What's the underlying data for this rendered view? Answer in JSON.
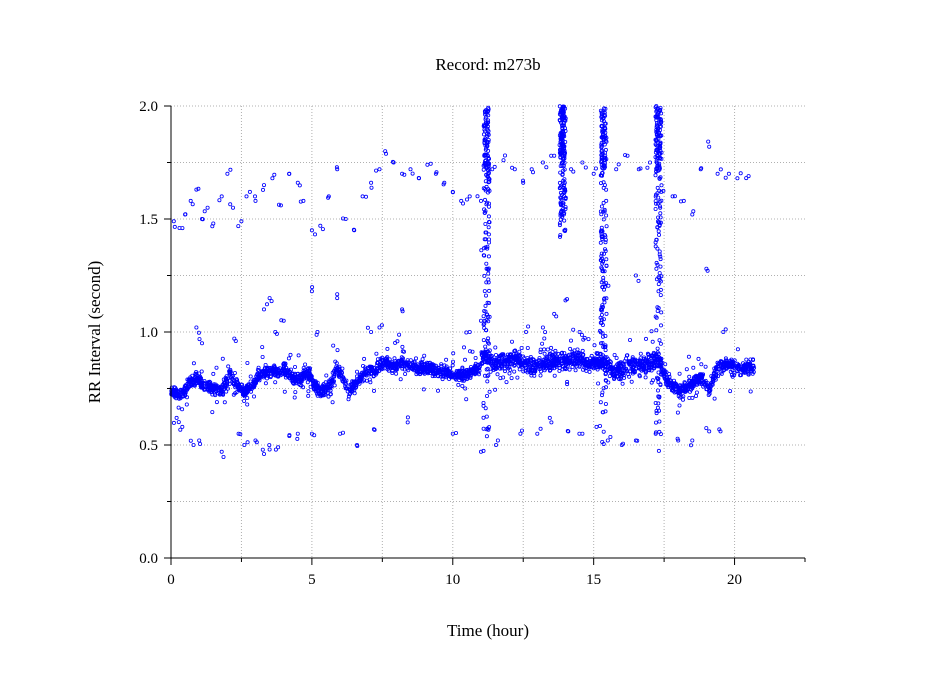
{
  "chart_data": {
    "type": "scatter",
    "title": "Record:  m273b",
    "xlabel": "Time (hour)",
    "ylabel": "RR Interval (second)",
    "xlim": [
      0,
      22.5
    ],
    "ylim": [
      0,
      2.0
    ],
    "x_ticks": [
      0,
      5,
      10,
      15,
      20
    ],
    "x_tick_labels": [
      "0",
      "5",
      "10",
      "15",
      "20"
    ],
    "x_minor_ticks": [
      2.5,
      7.5,
      12.5,
      17.5,
      22.5
    ],
    "y_ticks": [
      0.0,
      0.5,
      1.0,
      1.5,
      2.0
    ],
    "y_tick_labels": [
      "0.0",
      "0.5",
      "1.0",
      "1.5",
      "2.0"
    ],
    "y_minor_ticks": [
      0.25,
      0.75,
      1.25,
      1.75
    ],
    "grid": true,
    "marker_color": "#0000ff",
    "series": [
      {
        "baseline": [
          [
            0.0,
            0.74
          ],
          [
            0.3,
            0.72
          ],
          [
            0.6,
            0.76
          ],
          [
            0.9,
            0.8
          ],
          [
            1.2,
            0.76
          ],
          [
            1.5,
            0.75
          ],
          [
            1.8,
            0.74
          ],
          [
            2.1,
            0.82
          ],
          [
            2.3,
            0.77
          ],
          [
            2.6,
            0.74
          ],
          [
            2.9,
            0.76
          ],
          [
            3.2,
            0.82
          ],
          [
            3.5,
            0.83
          ],
          [
            3.8,
            0.82
          ],
          [
            4.0,
            0.84
          ],
          [
            4.2,
            0.81
          ],
          [
            4.4,
            0.79
          ],
          [
            4.6,
            0.79
          ],
          [
            4.9,
            0.82
          ],
          [
            5.1,
            0.76
          ],
          [
            5.3,
            0.74
          ],
          [
            5.6,
            0.76
          ],
          [
            5.9,
            0.84
          ],
          [
            6.1,
            0.8
          ],
          [
            6.3,
            0.74
          ],
          [
            6.6,
            0.78
          ],
          [
            6.9,
            0.82
          ],
          [
            7.2,
            0.83
          ],
          [
            7.5,
            0.86
          ],
          [
            7.8,
            0.85
          ],
          [
            8.2,
            0.86
          ],
          [
            8.6,
            0.85
          ],
          [
            9.0,
            0.84
          ],
          [
            9.5,
            0.83
          ],
          [
            10.0,
            0.81
          ],
          [
            10.5,
            0.81
          ],
          [
            10.9,
            0.84
          ],
          [
            11.1,
            0.9
          ],
          [
            11.4,
            0.86
          ],
          [
            11.8,
            0.87
          ],
          [
            12.2,
            0.88
          ],
          [
            12.5,
            0.86
          ],
          [
            12.9,
            0.84
          ],
          [
            13.2,
            0.86
          ],
          [
            13.6,
            0.87
          ],
          [
            14.0,
            0.87
          ],
          [
            14.4,
            0.88
          ],
          [
            14.8,
            0.86
          ],
          [
            15.2,
            0.87
          ],
          [
            15.5,
            0.86
          ],
          [
            15.8,
            0.82
          ],
          [
            16.2,
            0.86
          ],
          [
            16.6,
            0.85
          ],
          [
            17.0,
            0.86
          ],
          [
            17.3,
            0.88
          ],
          [
            17.6,
            0.78
          ],
          [
            18.0,
            0.74
          ],
          [
            18.4,
            0.76
          ],
          [
            18.8,
            0.8
          ],
          [
            19.1,
            0.74
          ],
          [
            19.4,
            0.84
          ],
          [
            19.7,
            0.86
          ],
          [
            20.1,
            0.84
          ],
          [
            20.7,
            0.84
          ]
        ],
        "upper_points": [
          [
            0.1,
            1.49
          ],
          [
            0.3,
            1.46
          ],
          [
            0.5,
            1.52
          ],
          [
            0.7,
            1.58
          ],
          [
            0.9,
            1.63
          ],
          [
            1.1,
            1.5
          ],
          [
            1.3,
            1.55
          ],
          [
            1.5,
            1.48
          ],
          [
            1.8,
            1.6
          ],
          [
            2.0,
            1.7
          ],
          [
            2.2,
            1.55
          ],
          [
            2.5,
            1.49
          ],
          [
            2.8,
            1.62
          ],
          [
            3.0,
            1.58
          ],
          [
            3.3,
            1.65
          ],
          [
            3.6,
            1.68
          ],
          [
            3.9,
            1.56
          ],
          [
            4.2,
            1.7
          ],
          [
            4.5,
            1.66
          ],
          [
            4.7,
            1.58
          ],
          [
            5.0,
            1.45
          ],
          [
            5.3,
            1.47
          ],
          [
            5.6,
            1.6
          ],
          [
            5.9,
            1.72
          ],
          [
            6.2,
            1.5
          ],
          [
            6.5,
            1.45
          ],
          [
            6.8,
            1.6
          ],
          [
            7.1,
            1.66
          ],
          [
            7.4,
            1.72
          ],
          [
            7.6,
            1.8
          ],
          [
            7.9,
            1.75
          ],
          [
            8.2,
            1.7
          ],
          [
            8.5,
            1.72
          ],
          [
            8.8,
            1.68
          ],
          [
            9.1,
            1.74
          ],
          [
            9.4,
            1.7
          ],
          [
            9.7,
            1.66
          ],
          [
            10.0,
            1.62
          ],
          [
            10.3,
            1.58
          ],
          [
            10.6,
            1.6
          ],
          [
            11.0,
            1.58
          ],
          [
            11.4,
            1.72
          ],
          [
            11.8,
            1.76
          ],
          [
            12.2,
            1.72
          ],
          [
            12.5,
            1.66
          ],
          [
            12.8,
            1.72
          ],
          [
            13.2,
            1.75
          ],
          [
            13.6,
            1.78
          ],
          [
            13.9,
            1.82
          ],
          [
            14.2,
            1.72
          ],
          [
            14.6,
            1.75
          ],
          [
            15.0,
            1.7
          ],
          [
            15.4,
            1.65
          ],
          [
            15.8,
            1.72
          ],
          [
            16.2,
            1.78
          ],
          [
            16.6,
            1.72
          ],
          [
            17.0,
            1.75
          ],
          [
            17.4,
            1.62
          ],
          [
            17.8,
            1.6
          ],
          [
            18.2,
            1.58
          ],
          [
            18.5,
            1.52
          ],
          [
            18.8,
            1.72
          ],
          [
            19.1,
            1.82
          ],
          [
            19.4,
            1.7
          ],
          [
            19.8,
            1.7
          ],
          [
            20.1,
            1.68
          ],
          [
            20.5,
            1.69
          ]
        ],
        "mid_points": [
          [
            0.9,
            1.02
          ],
          [
            1.1,
            0.95
          ],
          [
            2.3,
            0.96
          ],
          [
            3.3,
            1.1
          ],
          [
            3.5,
            1.15
          ],
          [
            3.7,
            1.0
          ],
          [
            4.0,
            1.05
          ],
          [
            5.0,
            1.18
          ],
          [
            5.2,
            1.0
          ],
          [
            5.9,
            1.15
          ],
          [
            7.1,
            1.0
          ],
          [
            7.4,
            1.02
          ],
          [
            8.2,
            1.1
          ],
          [
            10.6,
            1.0
          ],
          [
            11.0,
            1.05
          ],
          [
            11.1,
            1.34
          ],
          [
            11.2,
            1.28
          ],
          [
            12.6,
            1.0
          ],
          [
            13.2,
            1.02
          ],
          [
            13.6,
            1.08
          ],
          [
            14.0,
            1.14
          ],
          [
            14.5,
            1.0
          ],
          [
            15.3,
            1.28
          ],
          [
            15.4,
            1.2
          ],
          [
            16.5,
            1.25
          ],
          [
            17.3,
            1.18
          ],
          [
            19.0,
            1.28
          ],
          [
            19.6,
            1.0
          ]
        ],
        "lower_points": [
          [
            0.2,
            0.62
          ],
          [
            0.4,
            0.58
          ],
          [
            0.8,
            0.5
          ],
          [
            1.0,
            0.52
          ],
          [
            1.8,
            0.47
          ],
          [
            2.4,
            0.55
          ],
          [
            2.6,
            0.5
          ],
          [
            3.0,
            0.52
          ],
          [
            3.3,
            0.46
          ],
          [
            3.5,
            0.48
          ],
          [
            3.8,
            0.49
          ],
          [
            4.2,
            0.54
          ],
          [
            4.5,
            0.55
          ],
          [
            5.0,
            0.55
          ],
          [
            6.0,
            0.55
          ],
          [
            6.6,
            0.5
          ],
          [
            7.2,
            0.57
          ],
          [
            8.4,
            0.6
          ],
          [
            10.0,
            0.55
          ],
          [
            11.0,
            0.47
          ],
          [
            11.2,
            0.57
          ],
          [
            11.6,
            0.52
          ],
          [
            12.4,
            0.55
          ],
          [
            13.0,
            0.55
          ],
          [
            13.5,
            0.6
          ],
          [
            14.1,
            0.56
          ],
          [
            14.6,
            0.55
          ],
          [
            15.1,
            0.58
          ],
          [
            15.5,
            0.52
          ],
          [
            16.0,
            0.5
          ],
          [
            16.5,
            0.52
          ],
          [
            17.2,
            0.55
          ],
          [
            18.0,
            0.52
          ],
          [
            18.5,
            0.52
          ],
          [
            19.1,
            0.56
          ],
          [
            19.5,
            0.56
          ]
        ],
        "spikes": [
          {
            "x": 11.2,
            "y_min": 0.45,
            "y_max": 2.0
          },
          {
            "x": 13.9,
            "y_min": 1.4,
            "y_max": 2.0
          },
          {
            "x": 15.35,
            "y_min": 0.45,
            "y_max": 2.0
          },
          {
            "x": 17.3,
            "y_min": 0.45,
            "y_max": 2.0
          }
        ]
      }
    ]
  }
}
